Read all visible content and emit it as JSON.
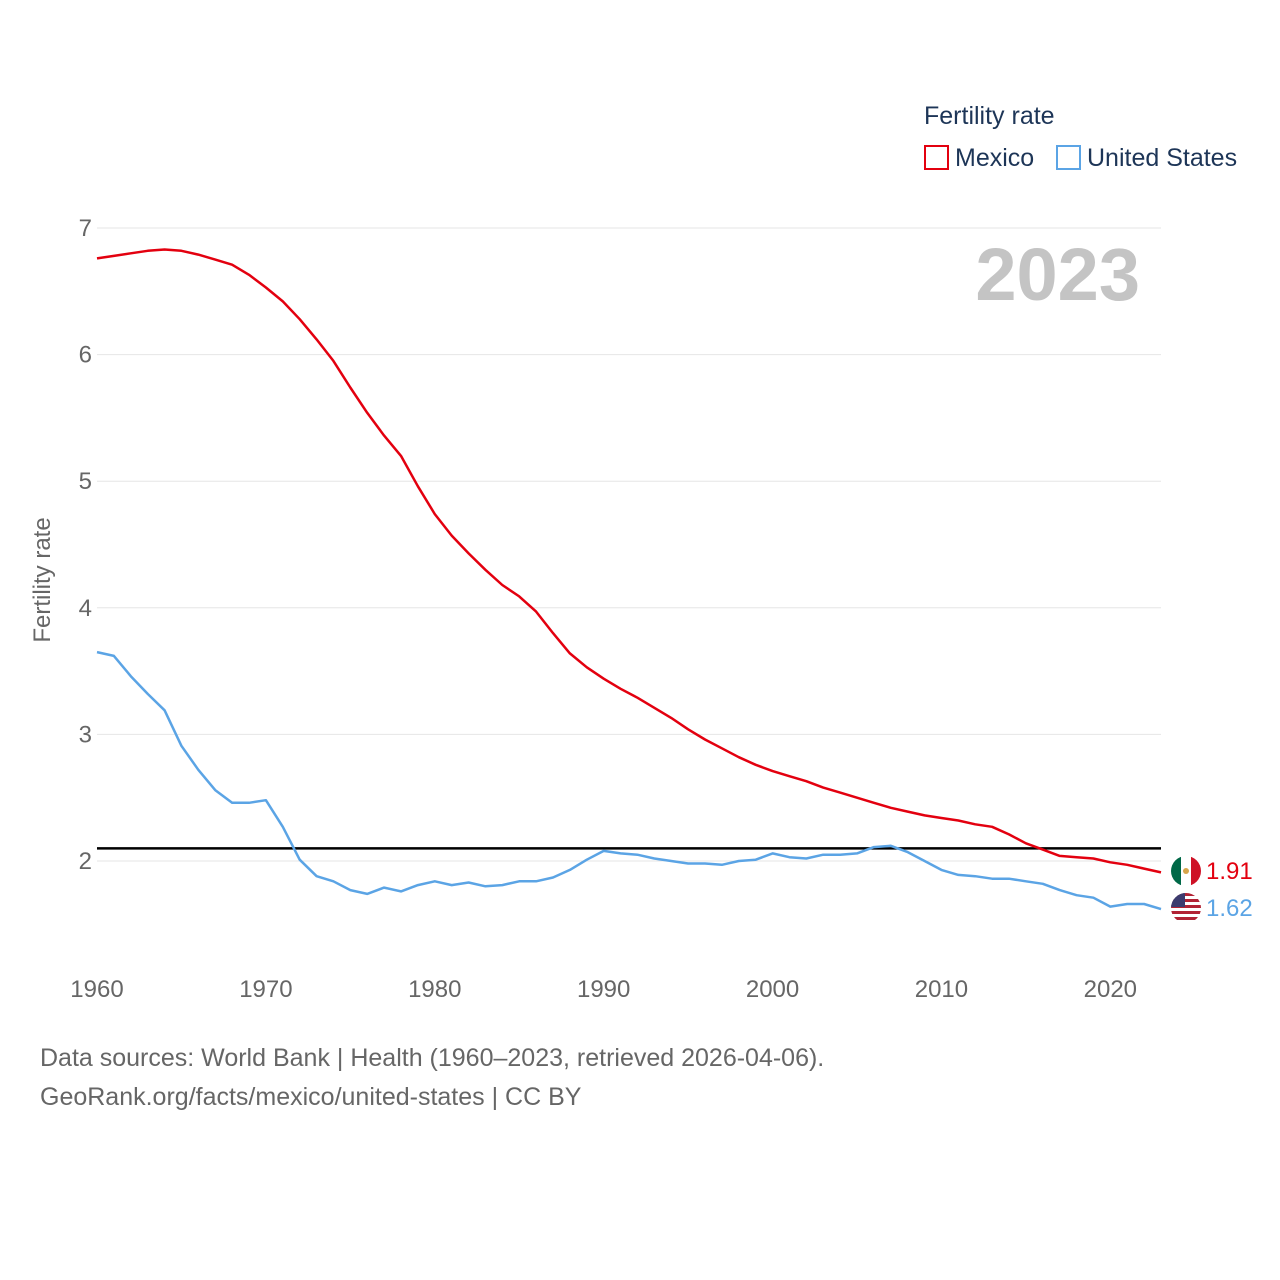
{
  "chart_data": {
    "type": "line",
    "legend_title": "Fertility rate",
    "ylabel": "Fertility rate",
    "year_label": "2023",
    "xlim": [
      1960,
      2023
    ],
    "ylim": [
      1.3,
      7.2
    ],
    "yticks": [
      2,
      3,
      4,
      5,
      6,
      7
    ],
    "xticks": [
      1960,
      1970,
      1980,
      1990,
      2000,
      2010,
      2020
    ],
    "reference_line": 2.1,
    "legend_position": "top-right",
    "x": [
      1960,
      1961,
      1962,
      1963,
      1964,
      1965,
      1966,
      1967,
      1968,
      1969,
      1970,
      1971,
      1972,
      1973,
      1974,
      1975,
      1976,
      1977,
      1978,
      1979,
      1980,
      1981,
      1982,
      1983,
      1984,
      1985,
      1986,
      1987,
      1988,
      1989,
      1990,
      1991,
      1992,
      1993,
      1994,
      1995,
      1996,
      1997,
      1998,
      1999,
      2000,
      2001,
      2002,
      2003,
      2004,
      2005,
      2006,
      2007,
      2008,
      2009,
      2010,
      2011,
      2012,
      2013,
      2014,
      2015,
      2016,
      2017,
      2018,
      2019,
      2020,
      2021,
      2022,
      2023
    ],
    "series": [
      {
        "name": "Mexico",
        "color": "#e3000f",
        "end_label": "1.91",
        "values": [
          6.76,
          6.78,
          6.8,
          6.82,
          6.83,
          6.82,
          6.79,
          6.75,
          6.71,
          6.63,
          6.53,
          6.42,
          6.28,
          6.12,
          5.95,
          5.74,
          5.54,
          5.36,
          5.2,
          4.96,
          4.74,
          4.57,
          4.43,
          4.3,
          4.18,
          4.09,
          3.97,
          3.8,
          3.64,
          3.53,
          3.44,
          3.36,
          3.29,
          3.21,
          3.13,
          3.04,
          2.96,
          2.89,
          2.82,
          2.76,
          2.71,
          2.67,
          2.63,
          2.58,
          2.54,
          2.5,
          2.46,
          2.42,
          2.39,
          2.36,
          2.34,
          2.32,
          2.29,
          2.27,
          2.21,
          2.14,
          2.09,
          2.04,
          2.03,
          2.02,
          1.99,
          1.97,
          1.94,
          1.91
        ]
      },
      {
        "name": "United States",
        "color": "#5ba4e5",
        "end_label": "1.62",
        "values": [
          3.65,
          3.62,
          3.46,
          3.32,
          3.19,
          2.91,
          2.72,
          2.56,
          2.46,
          2.46,
          2.48,
          2.27,
          2.01,
          1.88,
          1.84,
          1.77,
          1.74,
          1.79,
          1.76,
          1.81,
          1.84,
          1.81,
          1.83,
          1.8,
          1.81,
          1.84,
          1.84,
          1.87,
          1.93,
          2.01,
          2.08,
          2.06,
          2.05,
          2.02,
          2.0,
          1.98,
          1.98,
          1.97,
          2.0,
          2.01,
          2.06,
          2.03,
          2.02,
          2.05,
          2.05,
          2.06,
          2.11,
          2.12,
          2.07,
          2.0,
          1.93,
          1.89,
          1.88,
          1.86,
          1.86,
          1.84,
          1.82,
          1.77,
          1.73,
          1.71,
          1.64,
          1.66,
          1.66,
          1.62
        ]
      }
    ]
  },
  "footer": {
    "line1": "Data sources: World Bank | Health (1960–2023, retrieved 2026-04-06).",
    "line2": "GeoRank.org/facts/mexico/united-states | CC BY"
  }
}
